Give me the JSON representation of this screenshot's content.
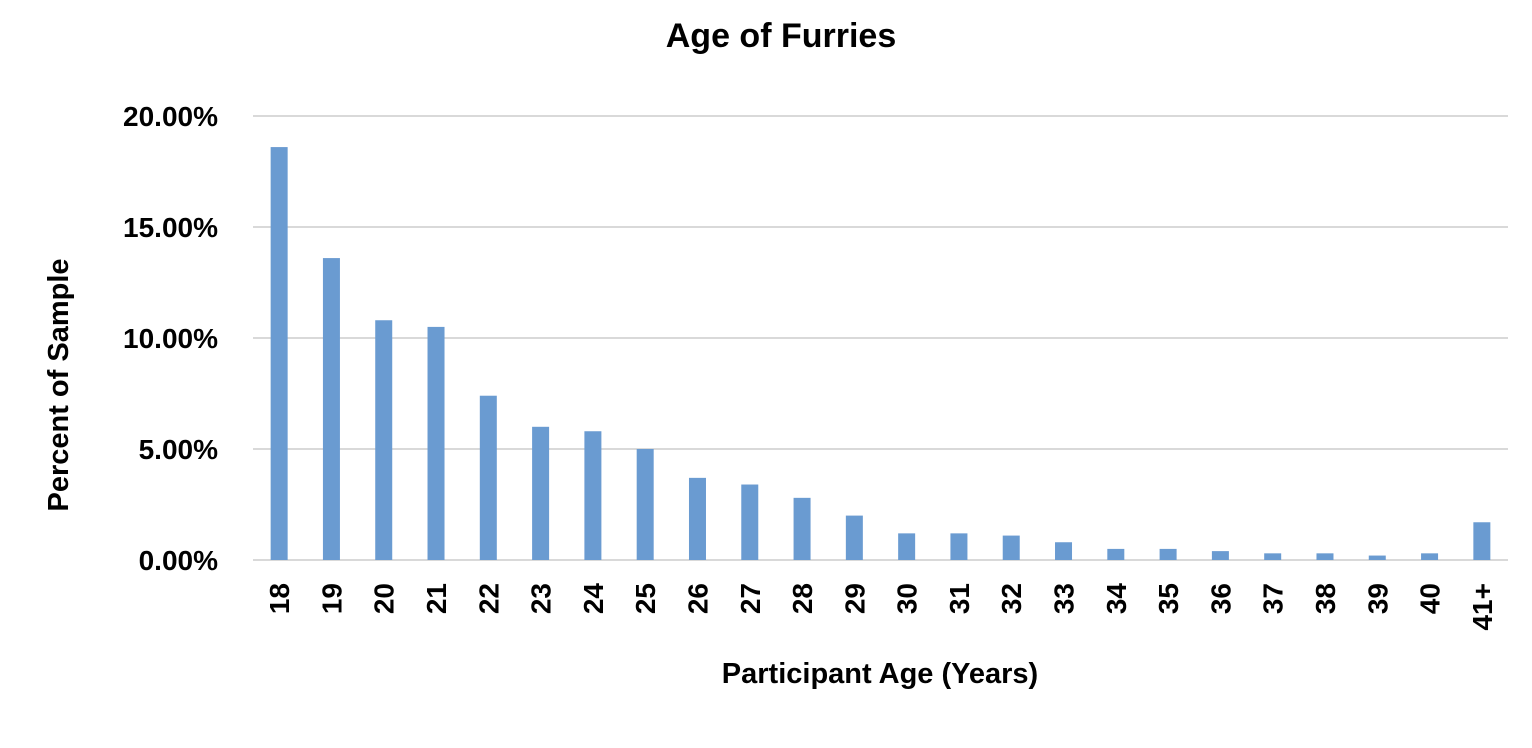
{
  "chart_data": {
    "type": "bar",
    "title": "Age of Furries",
    "xlabel": "Participant Age (Years)",
    "ylabel": "Percent of Sample",
    "categories": [
      "18",
      "19",
      "20",
      "21",
      "22",
      "23",
      "24",
      "25",
      "26",
      "27",
      "28",
      "29",
      "30",
      "31",
      "32",
      "33",
      "34",
      "35",
      "36",
      "37",
      "38",
      "39",
      "40",
      "41+"
    ],
    "values": [
      18.6,
      13.6,
      10.8,
      10.5,
      7.4,
      6.0,
      5.8,
      5.0,
      3.7,
      3.4,
      2.8,
      2.0,
      1.2,
      1.2,
      1.1,
      0.8,
      0.5,
      0.5,
      0.4,
      0.3,
      0.3,
      0.2,
      0.3,
      1.7
    ],
    "ylim": [
      0,
      20
    ],
    "yticks": [
      {
        "value": 0,
        "label": "0.00%"
      },
      {
        "value": 5,
        "label": "5.00%"
      },
      {
        "value": 10,
        "label": "10.00%"
      },
      {
        "value": 15,
        "label": "15.00%"
      },
      {
        "value": 20,
        "label": "20.00%"
      }
    ],
    "grid": true,
    "bar_color": "#6a9bd1",
    "grid_color": "#d9d9d9"
  }
}
